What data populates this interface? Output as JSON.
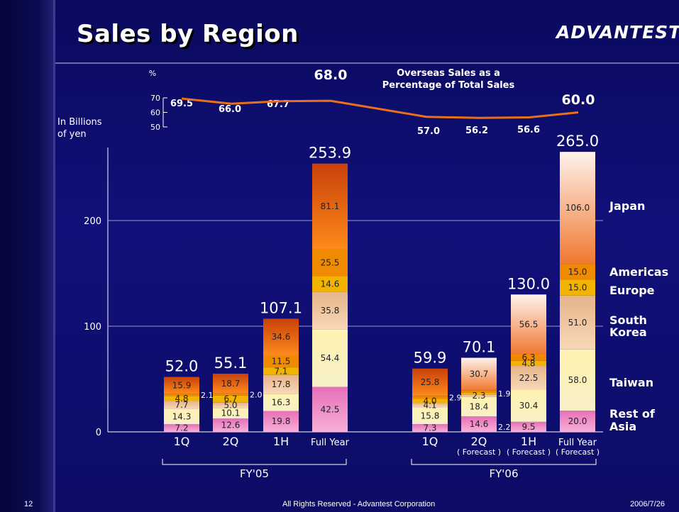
{
  "header": {
    "title": "Sales by Region",
    "logo": "ADVANTEST"
  },
  "footer": {
    "page": "12",
    "copyright": "All Rights Reserved - Advantest Corporation",
    "date": "2006/7/26"
  },
  "chart_data": {
    "type": "bar",
    "stacked": true,
    "ylabel": "In Billions of yen",
    "ylabel_lines": [
      "In Billions",
      "of yen"
    ],
    "yticks": [
      0,
      100,
      200
    ],
    "ylim": [
      0,
      265
    ],
    "categories": [
      "1Q",
      "2Q",
      "1H",
      "Full Year",
      "1Q",
      "2Q",
      "1H",
      "Full Year"
    ],
    "forecast_labels": [
      "",
      "",
      "",
      "",
      "",
      "( Forecast )",
      "( Forecast )",
      "( Forecast )"
    ],
    "groups": [
      {
        "label": "FY'05",
        "categories": [
          0,
          1,
          2,
          3
        ]
      },
      {
        "label": "FY'06",
        "categories": [
          4,
          5,
          6,
          7
        ]
      }
    ],
    "series": [
      {
        "name": "Rest of Asia",
        "color": "#e87fbf",
        "values": [
          7.2,
          12.6,
          19.8,
          42.5,
          7.3,
          14.6,
          9.5,
          20.0
        ]
      },
      {
        "name": "Taiwan",
        "color": "#f4eeaa",
        "values": [
          14.3,
          10.1,
          16.3,
          54.4,
          15.8,
          18.4,
          30.4,
          58.0
        ]
      },
      {
        "name": "South Korea",
        "color": "#f1c69a",
        "values": [
          7.7,
          5.0,
          17.8,
          35.8,
          4.1,
          2.3,
          22.5,
          51.0
        ]
      },
      {
        "name": "Europe",
        "color": "#f2b400",
        "values": [
          4.8,
          6.7,
          7.1,
          14.6,
          4.0,
          1.9,
          4.8,
          15.0
        ]
      },
      {
        "name": "Americas",
        "color": "#f08a00",
        "values": [
          2.1,
          2.0,
          11.5,
          25.5,
          2.9,
          2.2,
          6.3,
          15.0
        ]
      },
      {
        "name": "Japan",
        "color": "#e85a00",
        "values": [
          15.9,
          18.7,
          34.6,
          81.1,
          25.8,
          30.7,
          56.5,
          106.0
        ]
      }
    ],
    "segment_labels": [
      [
        "7.2",
        "14.3",
        "7.7",
        "4.8",
        "2.1",
        "15.9"
      ],
      [
        "12.6",
        "10.1",
        "5.0",
        "6.7",
        "2.0",
        "18.7"
      ],
      [
        "19.8",
        "16.3",
        "17.8",
        "7.1",
        "11.5",
        "34.6"
      ],
      [
        "42.5",
        "54.4",
        "35.8",
        "14.6",
        "25.5",
        "81.1"
      ],
      [
        "7.3",
        "15.8",
        "4.1",
        "4.0",
        "2.9",
        "25.8"
      ],
      [
        "14.6",
        "18.4",
        "2.3",
        "1.9",
        "2.2",
        "30.7"
      ],
      [
        "9.5",
        "30.4",
        "22.5",
        "4.8",
        "6.3",
        "56.5"
      ],
      [
        "20.0",
        "58.0",
        "51.0",
        "15.0",
        "15.0",
        "106.0"
      ]
    ],
    "totals": [
      "52.0",
      "55.1",
      "107.1",
      "253.9",
      "59.9",
      "70.1",
      "130.0",
      "265.0"
    ],
    "legend_labels": [
      "Japan",
      "Americas",
      "Europe",
      "South",
      "Korea",
      "Taiwan",
      "Rest of",
      "Asia"
    ],
    "overseas": {
      "title_lines": [
        "Overseas Sales as a",
        "Percentage of Total Sales"
      ],
      "unit": "%",
      "yticks": [
        50,
        60,
        70
      ],
      "values": [
        69.5,
        66.0,
        67.7,
        68.0,
        57.0,
        56.2,
        56.6,
        60.0
      ],
      "labels": [
        "69.5",
        "66.0",
        "67.7",
        "68.0",
        "57.0",
        "56.2",
        "56.6",
        "60.0"
      ],
      "color": "#e8701a"
    }
  }
}
